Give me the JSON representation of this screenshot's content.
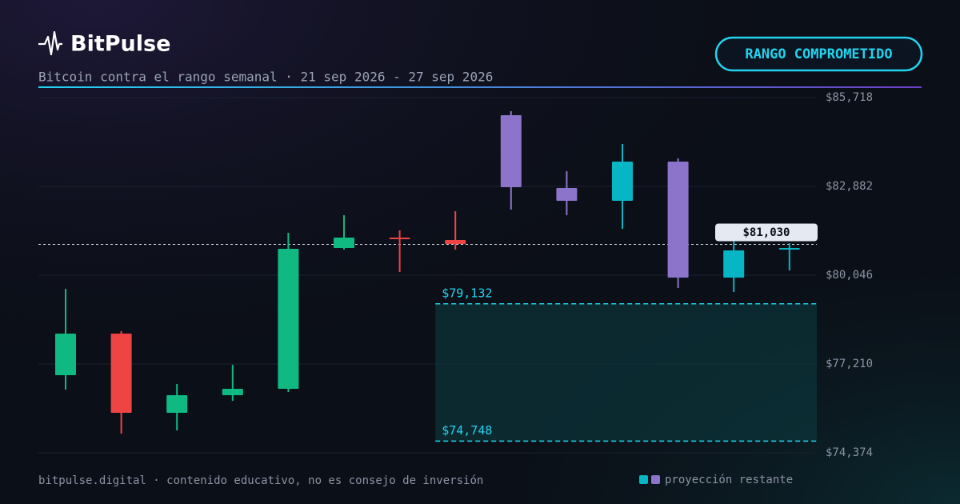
{
  "brand": "BitPulse",
  "status": "RANGO COMPROMETIDO",
  "footer": "bitpulse.digital · contenido educativo, no es consejo de inversión",
  "chart_data": {
    "type": "candlestick",
    "subtitle": "Bitcoin contra el rango semanal · 21 sep 2026 - 27 sep 2026",
    "categories": [
      null,
      null,
      null,
      null,
      null,
      null,
      null,
      null,
      null,
      null,
      null,
      null,
      null,
      null
    ],
    "open": [
      76852,
      78181,
      75651,
      76213,
      76418,
      80915,
      81247,
      81170,
      85156,
      82831,
      82422,
      83674,
      79969,
      80889
    ],
    "high": [
      79612,
      78257,
      76571,
      77184,
      81400,
      81962,
      81477,
      82090,
      85284,
      83367,
      84236,
      83776,
      81170,
      81068
    ],
    "low": [
      76392,
      74987,
      75089,
      76035,
      76316,
      80863,
      80148,
      80863,
      82141,
      81962,
      81528,
      79637,
      79509,
      80199
    ],
    "close": [
      78181,
      75651,
      76213,
      76418,
      80889,
      81247,
      81196,
      81042,
      82856,
      82422,
      83674,
      79969,
      80838,
      80915
    ],
    "projection": [
      false,
      false,
      false,
      false,
      false,
      false,
      false,
      false,
      true,
      true,
      true,
      true,
      true,
      true
    ],
    "up_color": "#10b981",
    "down_color": "#ef4444",
    "projection_up_color": "#06b6c4",
    "projection_down_color": "#8b74c9",
    "legend": "proyección restante",
    "current_price": {
      "value": 81030,
      "label": "$81,030"
    },
    "range": {
      "upper": {
        "value": 79132,
        "label": "$79,132"
      },
      "lower": {
        "value": 74748,
        "label": "$74,748"
      }
    },
    "ylim": [
      74374,
      85718
    ],
    "yticks": [
      {
        "value": 85718,
        "label": "$85,718"
      },
      {
        "value": 82882,
        "label": "$82,882"
      },
      {
        "value": 80046,
        "label": "$80,046"
      },
      {
        "value": 77210,
        "label": "$77,210"
      },
      {
        "value": 74374,
        "label": "$74,374"
      }
    ],
    "grid": true
  }
}
